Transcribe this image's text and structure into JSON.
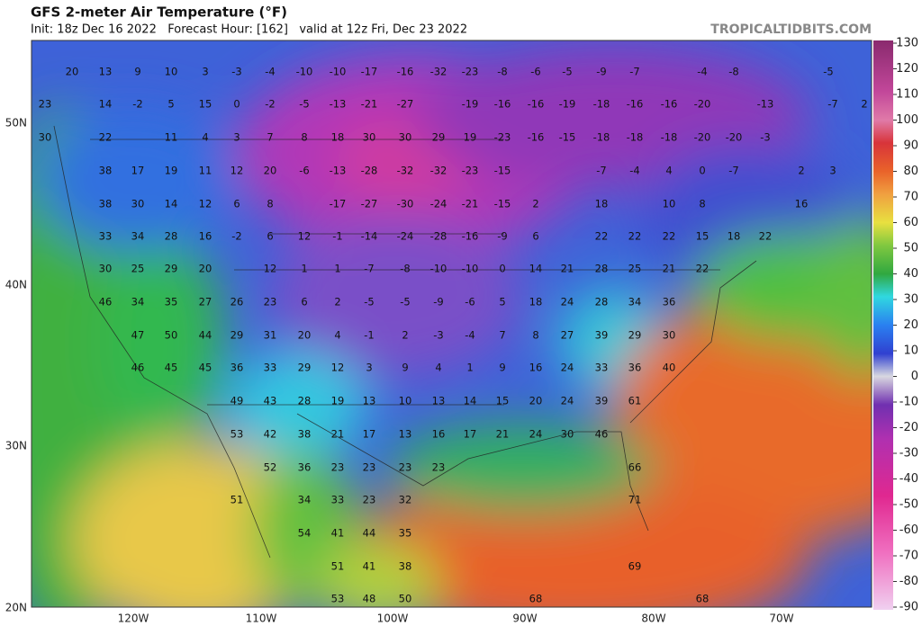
{
  "header": {
    "title": "GFS 2-meter Air Temperature (°F)",
    "subtitle": "Init: 18z Dec 16 2022   Forecast Hour: [162]   valid at 12z Fri, Dec 23 2022",
    "site": "TROPICALTIDBITS.COM"
  },
  "colorbar": {
    "ticks": [
      130,
      120,
      110,
      100,
      90,
      80,
      70,
      60,
      50,
      40,
      30,
      20,
      10,
      0,
      -10,
      -20,
      -30,
      -40,
      -50,
      -60,
      -70,
      -80,
      -90
    ]
  },
  "latitude_labels": [
    "50N",
    "40N",
    "30N",
    "20N"
  ],
  "longitude_labels": [
    "120W",
    "110W",
    "100W",
    "90W",
    "80W",
    "70W"
  ],
  "temperature_rows": [
    [
      20,
      13,
      9,
      10,
      3,
      -3,
      -4,
      -10,
      -10,
      -17,
      -16,
      -32,
      -23,
      -8,
      -6,
      -5,
      -9,
      -7,
      -4,
      -8,
      -5
    ],
    [
      23,
      14,
      -2,
      5,
      15,
      0,
      -2,
      -5,
      -13,
      -21,
      -27,
      -19,
      -16,
      -16,
      -19,
      -18,
      -16,
      -16,
      -20,
      -13,
      -7,
      2
    ],
    [
      30,
      22,
      11,
      4,
      3,
      7,
      8,
      18,
      30,
      30,
      29,
      19,
      -23,
      -16,
      -15,
      -18,
      -18,
      -18,
      -20,
      -20,
      -3
    ],
    [
      38,
      17,
      19,
      11,
      12,
      20,
      -6,
      -13,
      -28,
      -32,
      -32,
      -23,
      -15,
      -7,
      -4,
      4,
      0,
      -7,
      2,
      3
    ],
    [
      38,
      30,
      14,
      12,
      6,
      8,
      -17,
      -27,
      -30,
      -24,
      -21,
      -15,
      2,
      18,
      10,
      8,
      16
    ],
    [
      33,
      34,
      28,
      16,
      -2,
      6,
      12,
      -1,
      -14,
      -24,
      -28,
      -16,
      -9,
      6,
      22,
      22,
      22,
      15,
      18,
      22
    ],
    [
      30,
      25,
      29,
      20,
      12,
      1,
      1,
      -7,
      -8,
      -10,
      -10,
      0,
      14,
      21,
      28,
      25,
      21,
      22
    ],
    [
      46,
      34,
      35,
      27,
      26,
      23,
      6,
      2,
      -5,
      -5,
      -9,
      -6,
      5,
      18,
      24,
      28,
      34,
      36
    ],
    [
      47,
      50,
      44,
      29,
      31,
      20,
      4,
      -1,
      2,
      -3,
      -4,
      7,
      8,
      27,
      39,
      29,
      30
    ],
    [
      46,
      45,
      45,
      36,
      33,
      29,
      12,
      3,
      9,
      4,
      1,
      9,
      16,
      24,
      33,
      36,
      40
    ],
    [
      49,
      43,
      28,
      19,
      13,
      10,
      13,
      14,
      15,
      20,
      24,
      39,
      61
    ],
    [
      53,
      42,
      38,
      21,
      17,
      13,
      16,
      17,
      21,
      24,
      30,
      46
    ],
    [
      52,
      36,
      23,
      23,
      23,
      23,
      66
    ],
    [
      51,
      34,
      33,
      23,
      32,
      71
    ],
    [
      54,
      41,
      44,
      35
    ],
    [
      51,
      41,
      38,
      69
    ],
    [
      53,
      48,
      50,
      68,
      68
    ]
  ]
}
